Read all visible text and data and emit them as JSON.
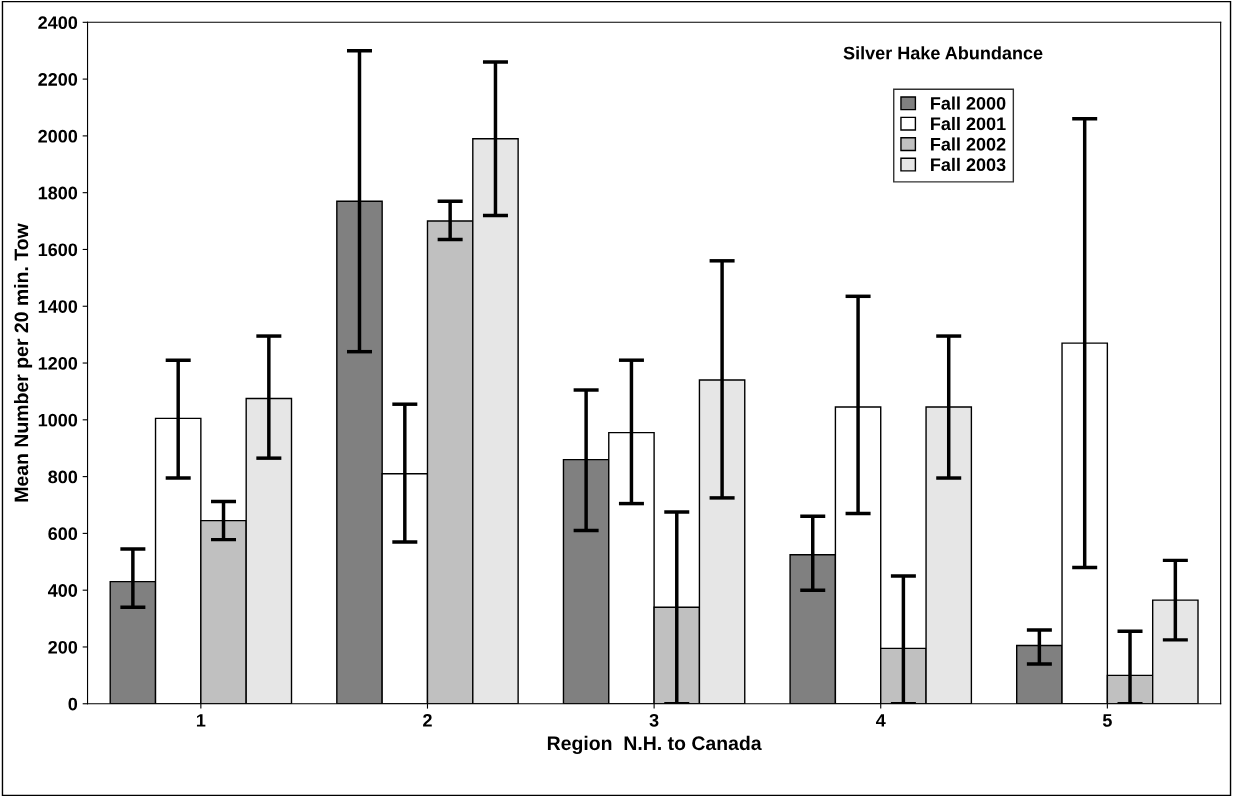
{
  "chart_data": {
    "type": "bar",
    "title": "Silver Hake Abundance",
    "xlabel": "Region  N.H. to Canada",
    "ylabel": "Mean Number per 20 min. Tow",
    "categories": [
      "1",
      "2",
      "3",
      "4",
      "5"
    ],
    "series": [
      {
        "name": "Fall 2000",
        "color": "#808080",
        "values": [
          430,
          1770,
          860,
          525,
          205
        ],
        "errors": [
          [
            340,
            545
          ],
          [
            1240,
            2300
          ],
          [
            610,
            1105
          ],
          [
            400,
            660
          ],
          [
            140,
            260
          ]
        ]
      },
      {
        "name": "Fall 2001",
        "color": "#ffffff",
        "values": [
          1005,
          810,
          955,
          1045,
          1270
        ],
        "errors": [
          [
            795,
            1210
          ],
          [
            570,
            1055
          ],
          [
            705,
            1210
          ],
          [
            670,
            1435
          ],
          [
            480,
            2060
          ]
        ]
      },
      {
        "name": "Fall 2002",
        "color": "#c0c0c0",
        "values": [
          645,
          1700,
          340,
          195,
          100
        ],
        "errors": [
          [
            578,
            712
          ],
          [
            1635,
            1770
          ],
          [
            0,
            675
          ],
          [
            0,
            450
          ],
          [
            0,
            255
          ]
        ]
      },
      {
        "name": "Fall 2003",
        "color": "#e6e6e6",
        "values": [
          1075,
          1990,
          1140,
          1045,
          365
        ],
        "errors": [
          [
            865,
            1295
          ],
          [
            1720,
            2260
          ],
          [
            725,
            1560
          ],
          [
            795,
            1295
          ],
          [
            225,
            505
          ]
        ]
      }
    ],
    "ylim": [
      0,
      2400
    ],
    "yticks": [
      0,
      200,
      400,
      600,
      800,
      1000,
      1200,
      1400,
      1600,
      1800,
      2000,
      2200,
      2400
    ],
    "grid": false,
    "legend": "top right"
  }
}
